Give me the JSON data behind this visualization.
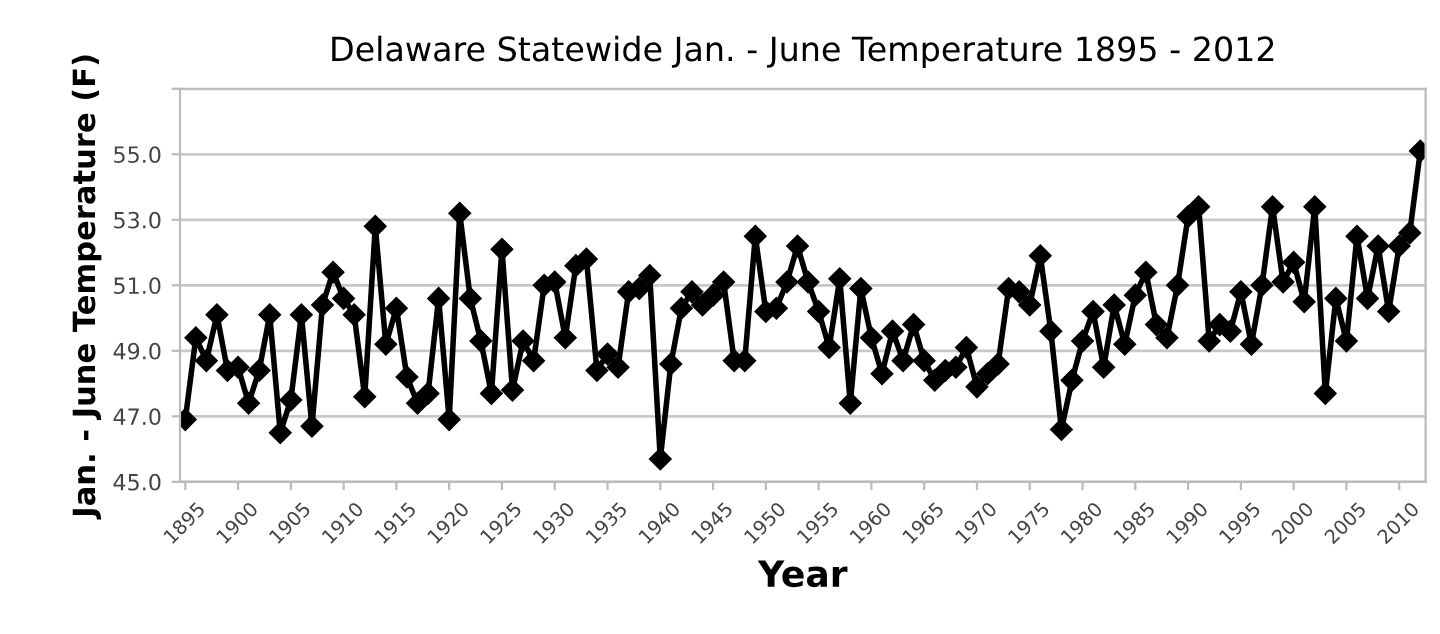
{
  "chart_data": {
    "type": "line",
    "title": "Delaware Statewide Jan. - June Temperature 1895 - 2012",
    "xlabel": "Year",
    "ylabel": "Jan. - June Temperature (F)",
    "x": [
      1895,
      1896,
      1897,
      1898,
      1899,
      1900,
      1901,
      1902,
      1903,
      1904,
      1905,
      1906,
      1907,
      1908,
      1909,
      1910,
      1911,
      1912,
      1913,
      1914,
      1915,
      1916,
      1917,
      1918,
      1919,
      1920,
      1921,
      1922,
      1923,
      1924,
      1925,
      1926,
      1927,
      1928,
      1929,
      1930,
      1931,
      1932,
      1933,
      1934,
      1935,
      1936,
      1937,
      1938,
      1939,
      1940,
      1941,
      1942,
      1943,
      1944,
      1945,
      1946,
      1947,
      1948,
      1949,
      1950,
      1951,
      1952,
      1953,
      1954,
      1955,
      1956,
      1957,
      1958,
      1959,
      1960,
      1961,
      1962,
      1963,
      1964,
      1965,
      1966,
      1967,
      1968,
      1969,
      1970,
      1971,
      1972,
      1973,
      1974,
      1975,
      1976,
      1977,
      1978,
      1979,
      1980,
      1981,
      1982,
      1983,
      1984,
      1985,
      1986,
      1987,
      1988,
      1989,
      1990,
      1991,
      1992,
      1993,
      1994,
      1995,
      1996,
      1997,
      1998,
      1999,
      2000,
      2001,
      2002,
      2003,
      2004,
      2005,
      2006,
      2007,
      2008,
      2009,
      2010,
      2011,
      2012
    ],
    "series": [
      {
        "color": "#000000",
        "values": [
          46.9,
          49.4,
          48.7,
          50.1,
          48.4,
          48.5,
          47.4,
          48.4,
          50.1,
          46.5,
          47.5,
          50.1,
          46.7,
          50.4,
          51.4,
          50.6,
          50.1,
          47.6,
          52.8,
          49.2,
          50.3,
          48.2,
          47.4,
          47.7,
          50.6,
          46.9,
          53.2,
          50.6,
          49.3,
          47.7,
          52.1,
          47.8,
          49.3,
          48.7,
          51.0,
          51.1,
          49.4,
          51.6,
          51.8,
          48.4,
          48.9,
          48.5,
          50.8,
          50.9,
          51.3,
          45.7,
          48.6,
          50.3,
          50.8,
          50.4,
          50.7,
          51.1,
          48.7,
          48.7,
          52.5,
          50.2,
          50.3,
          51.1,
          52.2,
          51.1,
          50.2,
          49.1,
          51.2,
          47.4,
          50.9,
          49.4,
          48.3,
          49.6,
          48.7,
          49.8,
          48.7,
          48.1,
          48.4,
          48.5,
          49.1,
          47.9,
          48.3,
          48.6,
          50.9,
          50.8,
          50.4,
          51.9,
          49.6,
          46.6,
          48.1,
          49.3,
          50.2,
          48.5,
          50.4,
          49.2,
          50.7,
          51.4,
          49.8,
          49.4,
          51.0,
          53.1,
          53.4,
          49.3,
          49.8,
          49.6,
          50.8,
          49.2,
          51.0,
          53.4,
          51.1,
          51.7,
          50.5,
          53.4,
          47.7,
          50.6,
          49.3,
          52.5,
          50.6,
          52.2,
          50.2,
          52.2,
          52.6,
          55.1
        ]
      }
    ],
    "xlim": [
      1894.5,
      2012.5
    ],
    "xticks": [
      1895,
      1900,
      1905,
      1910,
      1915,
      1920,
      1925,
      1930,
      1935,
      1940,
      1945,
      1950,
      1955,
      1960,
      1965,
      1970,
      1975,
      1980,
      1985,
      1990,
      1995,
      2000,
      2005,
      2010
    ],
    "ylim": [
      45,
      57
    ],
    "yticks": [
      {
        "value": 45,
        "label": "45.0"
      },
      {
        "value": 47,
        "label": "47.0"
      },
      {
        "value": 49,
        "label": "49.0"
      },
      {
        "value": 51,
        "label": "51.0"
      },
      {
        "value": 53,
        "label": "53.0"
      },
      {
        "value": 55,
        "label": "55.0"
      },
      {
        "value": 57,
        "label": null
      }
    ],
    "grid": "y",
    "marker": "diamond",
    "line_style": "solid",
    "legend": false
  }
}
